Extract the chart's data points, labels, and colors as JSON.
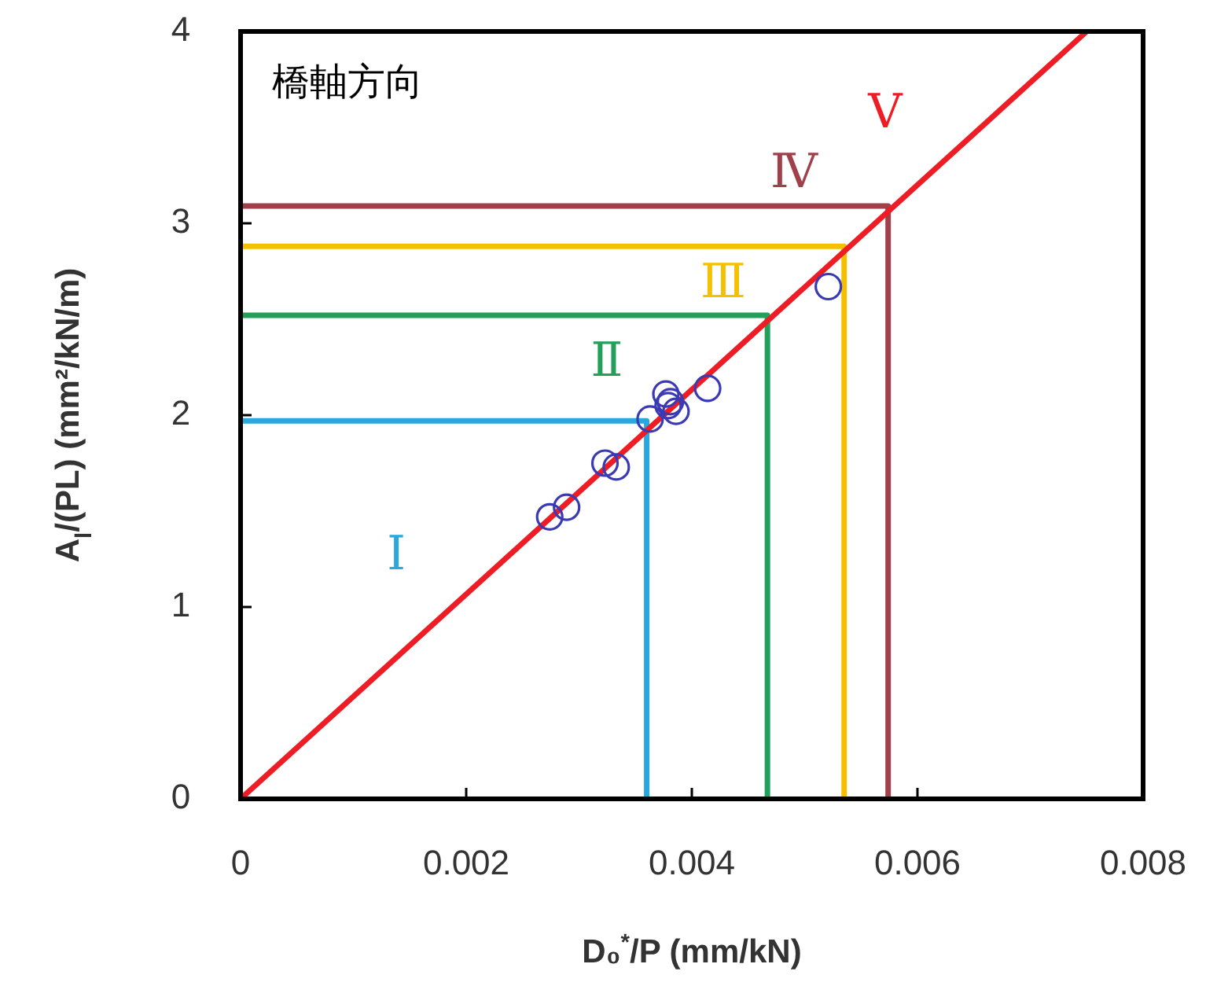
{
  "chart_data": {
    "type": "scatter",
    "xlabel": "D₀$^{*}$/P (mm/kN)",
    "ylabel": "A$_{l}$/(PL) (mm²/kN/m)",
    "xlim": [
      0,
      0.008
    ],
    "ylim": [
      0,
      4
    ],
    "xticks": [
      0,
      0.002,
      0.004,
      0.006,
      0.008
    ],
    "yticks": [
      0,
      1,
      2,
      3,
      4
    ],
    "grid": false,
    "annotations": [
      "橋軸方向"
    ],
    "series": [
      {
        "type": "line",
        "marker": "none",
        "name": "Ⅰ",
        "color": "#29a8e0",
        "x": [
          0,
          0.0036,
          0.0036
        ],
        "values": [
          1.97,
          1.97,
          0
        ]
      },
      {
        "type": "line",
        "marker": "none",
        "name": "Ⅱ",
        "color": "#22a05a",
        "x": [
          0,
          0.00467,
          0.00467
        ],
        "values": [
          2.52,
          2.52,
          0
        ]
      },
      {
        "type": "line",
        "marker": "none",
        "name": "Ⅲ",
        "color": "#f5c000",
        "x": [
          0,
          0.00535,
          0.00535
        ],
        "values": [
          2.88,
          2.88,
          0
        ]
      },
      {
        "type": "line",
        "marker": "none",
        "name": "Ⅳ",
        "color": "#a0404a",
        "x": [
          0,
          0.00574,
          0.00574
        ],
        "values": [
          3.09,
          3.09,
          0
        ]
      },
      {
        "type": "line",
        "marker": "none",
        "name": "Ⅴ",
        "color": "#ee1c25",
        "x": [
          0,
          0.0075
        ],
        "values": [
          0,
          4
        ]
      },
      {
        "marker": "circle",
        "color": "#3a3ab4",
        "x": [
          0.00274,
          0.00289,
          0.00323,
          0.00333,
          0.00363,
          0.00377,
          0.00379,
          0.00381,
          0.00386,
          0.00414,
          0.00521
        ],
        "values": [
          1.47,
          1.52,
          1.75,
          1.73,
          1.98,
          2.11,
          2.05,
          2.07,
          2.02,
          2.14,
          2.67
        ]
      }
    ]
  }
}
